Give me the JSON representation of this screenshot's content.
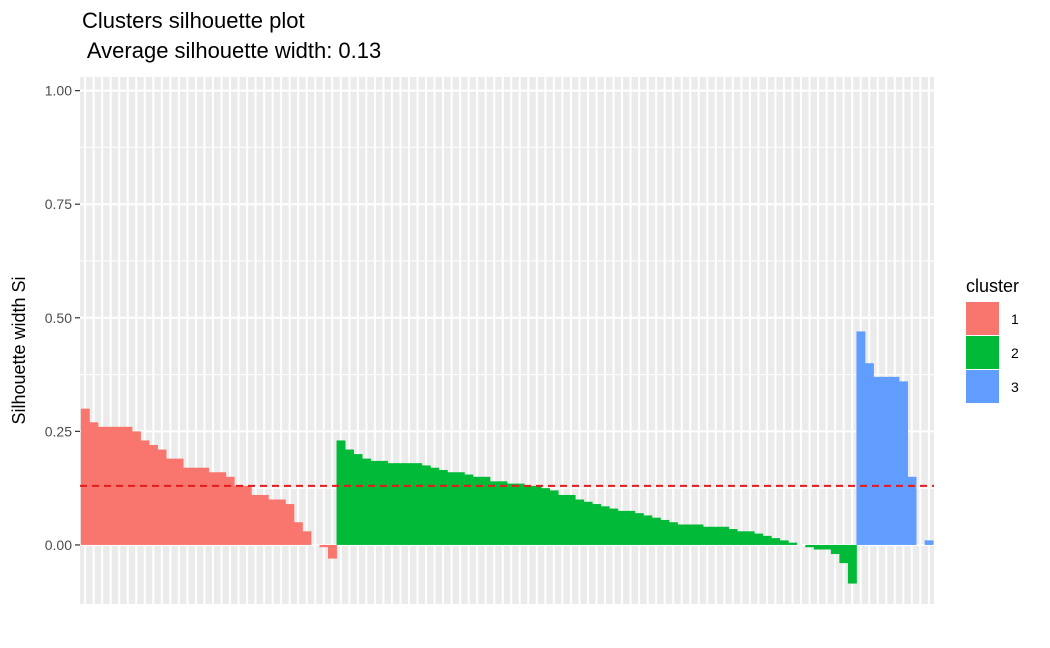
{
  "chart_data": {
    "type": "bar",
    "title": "Clusters silhouette plot",
    "subtitle": " Average silhouette width: 0.13",
    "xlabel": "",
    "ylabel": "Silhouette width Si",
    "ylim": [
      -0.13,
      1.03
    ],
    "yticks": [
      "0.00",
      "0.25",
      "0.50",
      "0.75",
      "1.00"
    ],
    "ytick_values": [
      0,
      0.25,
      0.5,
      0.75,
      1.0
    ],
    "average_line": 0.13,
    "average_line_color": "#e41a1c",
    "grid": true,
    "panel_background": "#ebebeb",
    "legend": {
      "title": "cluster",
      "position": "right",
      "items": [
        {
          "label": "1",
          "color": "#F8766D"
        },
        {
          "label": "2",
          "color": "#00BA38"
        },
        {
          "label": "3",
          "color": "#619CFF"
        }
      ]
    },
    "series": [
      {
        "cluster": "1",
        "color": "#F8766D",
        "values": [
          0.3,
          0.27,
          0.26,
          0.26,
          0.26,
          0.26,
          0.25,
          0.23,
          0.22,
          0.21,
          0.19,
          0.19,
          0.17,
          0.17,
          0.17,
          0.16,
          0.16,
          0.15,
          0.13,
          0.13,
          0.11,
          0.11,
          0.1,
          0.1,
          0.09,
          0.05,
          0.03,
          0.0,
          -0.005,
          -0.03
        ]
      },
      {
        "cluster": "2",
        "color": "#00BA38",
        "values": [
          0.23,
          0.21,
          0.2,
          0.19,
          0.185,
          0.185,
          0.18,
          0.18,
          0.18,
          0.18,
          0.175,
          0.17,
          0.165,
          0.16,
          0.16,
          0.155,
          0.15,
          0.15,
          0.14,
          0.14,
          0.135,
          0.135,
          0.13,
          0.13,
          0.125,
          0.12,
          0.11,
          0.11,
          0.1,
          0.095,
          0.09,
          0.085,
          0.08,
          0.075,
          0.075,
          0.07,
          0.065,
          0.06,
          0.055,
          0.05,
          0.045,
          0.045,
          0.045,
          0.04,
          0.04,
          0.04,
          0.035,
          0.03,
          0.03,
          0.025,
          0.02,
          0.015,
          0.01,
          0.005,
          0.0,
          -0.005,
          -0.01,
          -0.01,
          -0.02,
          -0.04,
          -0.085
        ]
      },
      {
        "cluster": "3",
        "color": "#619CFF",
        "values": [
          0.47,
          0.4,
          0.37,
          0.37,
          0.37,
          0.36,
          0.15,
          0.0,
          0.01
        ]
      }
    ]
  }
}
